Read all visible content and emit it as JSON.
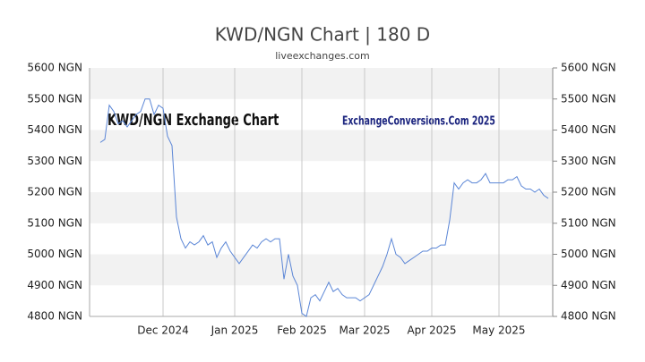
{
  "chart_data": {
    "type": "line",
    "title": "KWD/NGN Chart | 180 D",
    "subtitle": "liveexchanges.com",
    "annotations": [
      "KWD/NGN Exchange Chart",
      "ExchangeConversions.Com 2025"
    ],
    "categories": [
      null,
      null,
      null,
      null,
      null,
      null,
      null,
      null,
      null,
      null,
      null,
      null,
      null,
      null,
      "Dec 2024",
      null,
      null,
      null,
      null,
      null,
      null,
      null,
      null,
      null,
      null,
      null,
      null,
      null,
      null,
      null,
      "Jan 2025",
      null,
      null,
      null,
      null,
      null,
      null,
      null,
      null,
      null,
      null,
      null,
      null,
      null,
      null,
      "Feb 2025",
      null,
      null,
      null,
      null,
      null,
      null,
      null,
      null,
      null,
      null,
      null,
      null,
      null,
      "Mar 2025",
      null,
      null,
      null,
      null,
      null,
      null,
      null,
      null,
      null,
      null,
      null,
      null,
      null,
      null,
      "Apr 2025",
      null,
      null,
      null,
      null,
      null,
      null,
      null,
      null,
      null,
      null,
      null,
      null,
      null,
      null,
      "May 2025",
      null,
      null,
      null,
      null,
      null,
      null,
      null,
      null,
      null,
      null,
      null
    ],
    "series": [
      {
        "name": "KWD/NGN",
        "color": "#5b86d6",
        "values": [
          5360,
          5370,
          5480,
          5460,
          5420,
          5430,
          5410,
          5430,
          5450,
          5460,
          5500,
          5500,
          5450,
          5480,
          5470,
          5380,
          5350,
          5120,
          5050,
          5020,
          5040,
          5030,
          5040,
          5060,
          5030,
          5040,
          4990,
          5020,
          5040,
          5010,
          4990,
          4970,
          4990,
          5010,
          5030,
          5020,
          5040,
          5050,
          5040,
          5050,
          5050,
          4920,
          5000,
          4930,
          4900,
          4810,
          4800,
          4860,
          4870,
          4850,
          4880,
          4910,
          4880,
          4890,
          4870,
          4860,
          4860,
          4860,
          4850,
          4860,
          4870,
          4900,
          4930,
          4960,
          5000,
          5050,
          5000,
          4990,
          4970,
          4980,
          4990,
          5000,
          5010,
          5010,
          5020,
          5020,
          5030,
          5030,
          5110,
          5230,
          5210,
          5230,
          5240,
          5230,
          5230,
          5240,
          5260,
          5230,
          5230,
          5230,
          5230,
          5240,
          5240,
          5250,
          5220,
          5210,
          5210,
          5200,
          5210,
          5190,
          5180
        ]
      }
    ],
    "ylim": [
      4800,
      5600
    ],
    "yticks": [
      {
        "value": 4800,
        "label": "4800 NGN"
      },
      {
        "value": 4900,
        "label": "4900 NGN"
      },
      {
        "value": 5000,
        "label": "5000 NGN"
      },
      {
        "value": 5100,
        "label": "5100 NGN"
      },
      {
        "value": 5200,
        "label": "5200 NGN"
      },
      {
        "value": 5300,
        "label": "5300 NGN"
      },
      {
        "value": 5400,
        "label": "5400 NGN"
      },
      {
        "value": 5500,
        "label": "5500 NGN"
      },
      {
        "value": 5600,
        "label": "5600 NGN"
      }
    ],
    "grid": true
  }
}
